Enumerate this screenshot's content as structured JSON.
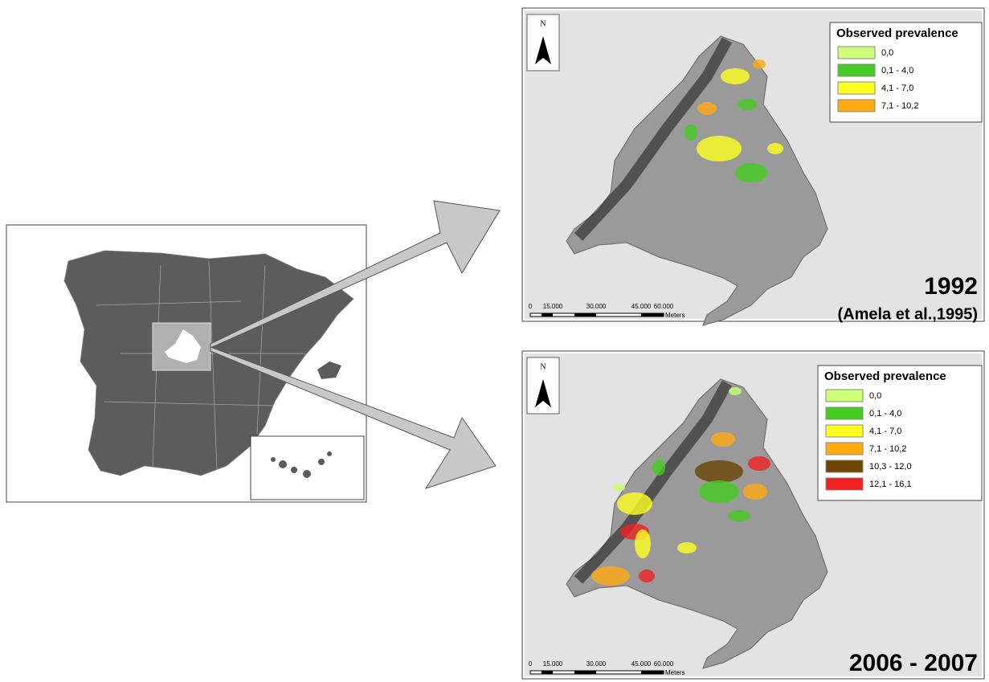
{
  "maps": [
    {
      "north": "N",
      "legend": {
        "title": "Observed prevalence",
        "items": [
          {
            "label": "0,0",
            "color": "#ccff77"
          },
          {
            "label": "0,1 - 4,0",
            "color": "#44cc22"
          },
          {
            "label": "4,1 - 7,0",
            "color": "#ffff22"
          },
          {
            "label": "7,1 - 10,2",
            "color": "#ffaa11"
          }
        ]
      },
      "scale": {
        "labels": [
          "0",
          "15.000",
          "30.000",
          "45.000",
          "60.000"
        ],
        "unit": "Meters"
      },
      "period": "1992",
      "source": "(Amela et al.,1995)"
    },
    {
      "north": "N",
      "legend": {
        "title": "Observed prevalence",
        "items": [
          {
            "label": "0,0",
            "color": "#ccff77"
          },
          {
            "label": "0,1 - 4,0",
            "color": "#44cc22"
          },
          {
            "label": "4,1 - 7,0",
            "color": "#ffff22"
          },
          {
            "label": "7,1 - 10,2",
            "color": "#ffaa11"
          },
          {
            "label": "10,3 - 12,0",
            "color": "#6b4400"
          },
          {
            "label": "12,1 - 16,1",
            "color": "#ee2222"
          }
        ]
      },
      "scale": {
        "labels": [
          "0",
          "15.000",
          "30.000",
          "45.000",
          "60.000"
        ],
        "unit": "Meters"
      },
      "period": "2006 - 2007"
    }
  ]
}
